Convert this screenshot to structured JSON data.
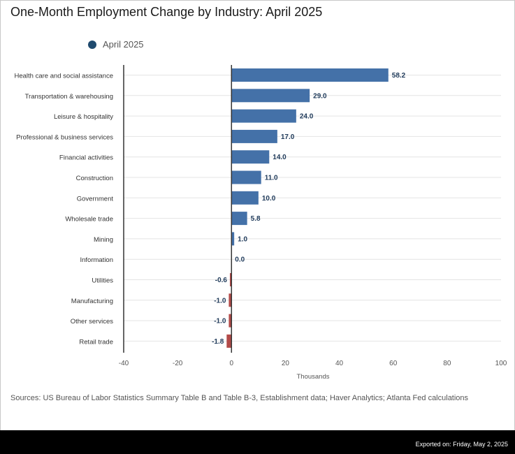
{
  "title": "One-Month Employment Change by Industry: April 2025",
  "legend": {
    "label": "April 2025"
  },
  "colors": {
    "positive": "#4471a8",
    "negative": "#b24a48",
    "legend": "#1f4a6e",
    "grid": "#e4e4e4",
    "axis": "#333333",
    "label": "#333333",
    "value": "#1f3a5a"
  },
  "chart_data": {
    "type": "bar",
    "orientation": "horizontal",
    "title": "One-Month Employment Change by Industry: April 2025",
    "xlabel": "Thousands",
    "ylabel": "",
    "xlim": [
      -40,
      100
    ],
    "xticks": [
      -40,
      -20,
      0,
      20,
      40,
      60,
      80,
      100
    ],
    "grid": true,
    "legend_position": "top-left",
    "series": [
      {
        "name": "April 2025",
        "values": [
          58.2,
          29.0,
          24.0,
          17.0,
          14.0,
          11.0,
          10.0,
          5.8,
          1.0,
          0.0,
          -0.6,
          -1.0,
          -1.0,
          -1.8
        ],
        "labels": [
          "58.2",
          "29.0",
          "24.0",
          "17.0",
          "14.0",
          "11.0",
          "10.0",
          "5.8",
          "1.0",
          "0.0",
          "-0.6",
          "-1.0",
          "-1.0",
          "-1.8"
        ]
      }
    ],
    "categories": [
      "Health care and social assistance",
      "Transportation & warehousing",
      "Leisure & hospitality",
      "Professional & business services",
      "Financial activities",
      "Construction",
      "Government",
      "Wholesale trade",
      "Mining",
      "Information",
      "Utilities",
      "Manufacturing",
      "Other services",
      "Retail trade"
    ]
  },
  "source": "Sources: US Bureau of Labor Statistics Summary Table B and Table B-3, Establishment data; Haver Analytics; Atlanta Fed calculations",
  "export": "Exported on: Friday, May 2, 2025"
}
